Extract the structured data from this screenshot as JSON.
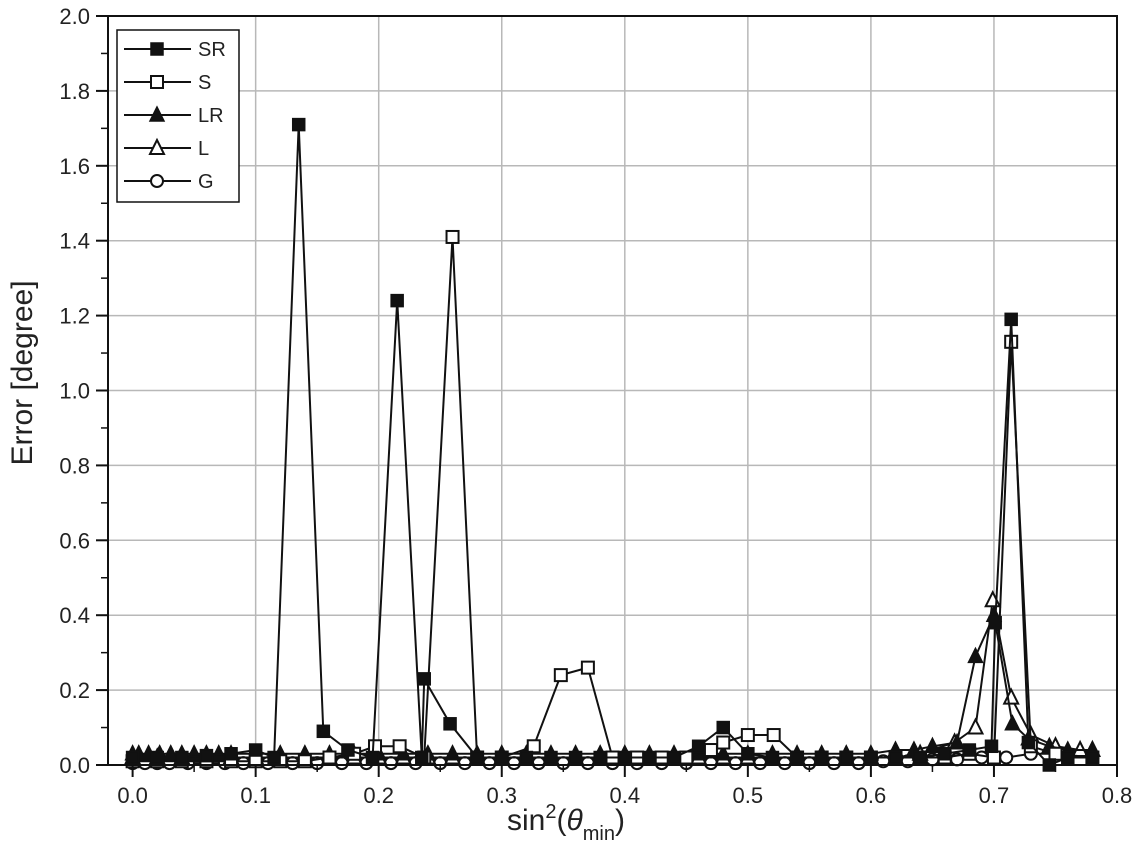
{
  "chart_data": {
    "type": "line",
    "title": "",
    "ylabel": "Error [degree]",
    "xlabel_main": "sin",
    "xlabel_sup": "2",
    "xlabel_paren_open": "(",
    "xlabel_theta": "θ",
    "xlabel_sub": "min",
    "xlabel_paren_close": ")",
    "xlim": [
      -0.02,
      0.8
    ],
    "ylim": [
      0,
      2.0
    ],
    "x_ticks": [
      "0.0",
      "0.1",
      "0.2",
      "0.3",
      "0.4",
      "0.5",
      "0.6",
      "0.7",
      "0.8"
    ],
    "y_ticks": [
      "0.0",
      "0.2",
      "0.4",
      "0.6",
      "0.8",
      "1.0",
      "1.2",
      "1.4",
      "1.6",
      "1.8",
      "2.0"
    ],
    "grid": true,
    "legend_position": "top-left",
    "series": [
      {
        "name": "SR",
        "marker": "square-filled",
        "x": [
          0.0,
          0.02,
          0.04,
          0.06,
          0.08,
          0.1,
          0.115,
          0.135,
          0.155,
          0.175,
          0.195,
          0.215,
          0.235,
          0.237,
          0.258,
          0.28,
          0.3,
          0.32,
          0.34,
          0.36,
          0.38,
          0.4,
          0.42,
          0.44,
          0.46,
          0.48,
          0.5,
          0.52,
          0.54,
          0.56,
          0.58,
          0.6,
          0.62,
          0.64,
          0.66,
          0.68,
          0.698,
          0.701,
          0.714,
          0.728,
          0.745,
          0.76,
          0.78
        ],
        "y": [
          0.02,
          0.02,
          0.02,
          0.025,
          0.03,
          0.04,
          0.02,
          1.71,
          0.09,
          0.04,
          0.02,
          1.24,
          0.02,
          0.23,
          0.11,
          0.02,
          0.02,
          0.02,
          0.02,
          0.02,
          0.02,
          0.02,
          0.02,
          0.02,
          0.05,
          0.1,
          0.03,
          0.02,
          0.02,
          0.02,
          0.02,
          0.02,
          0.02,
          0.02,
          0.03,
          0.04,
          0.05,
          0.38,
          1.19,
          0.06,
          0.0,
          0.02,
          0.02
        ]
      },
      {
        "name": "S",
        "marker": "square-open",
        "x": [
          0.0,
          0.02,
          0.04,
          0.06,
          0.08,
          0.1,
          0.12,
          0.14,
          0.16,
          0.18,
          0.197,
          0.217,
          0.237,
          0.26,
          0.28,
          0.3,
          0.326,
          0.348,
          0.37,
          0.39,
          0.41,
          0.43,
          0.45,
          0.47,
          0.48,
          0.5,
          0.521,
          0.54,
          0.56,
          0.58,
          0.6,
          0.62,
          0.64,
          0.66,
          0.68,
          0.7,
          0.714,
          0.73,
          0.75,
          0.78
        ],
        "y": [
          0.01,
          0.01,
          0.01,
          0.01,
          0.01,
          0.01,
          0.01,
          0.01,
          0.02,
          0.03,
          0.05,
          0.05,
          0.02,
          1.41,
          0.02,
          0.02,
          0.05,
          0.24,
          0.26,
          0.02,
          0.02,
          0.02,
          0.02,
          0.04,
          0.06,
          0.08,
          0.08,
          0.02,
          0.02,
          0.02,
          0.02,
          0.02,
          0.02,
          0.02,
          0.03,
          0.02,
          1.13,
          0.05,
          0.03,
          0.02
        ]
      },
      {
        "name": "LR",
        "marker": "triangle-filled",
        "x": [
          0.0,
          0.005,
          0.013,
          0.022,
          0.031,
          0.04,
          0.05,
          0.06,
          0.07,
          0.08,
          0.1,
          0.12,
          0.14,
          0.16,
          0.18,
          0.2,
          0.22,
          0.24,
          0.26,
          0.28,
          0.3,
          0.32,
          0.34,
          0.36,
          0.38,
          0.4,
          0.42,
          0.44,
          0.46,
          0.48,
          0.5,
          0.52,
          0.54,
          0.56,
          0.58,
          0.6,
          0.62,
          0.635,
          0.65,
          0.67,
          0.685,
          0.7,
          0.715,
          0.728,
          0.745,
          0.76,
          0.78
        ],
        "y": [
          0.03,
          0.03,
          0.03,
          0.03,
          0.03,
          0.03,
          0.03,
          0.03,
          0.03,
          0.03,
          0.03,
          0.03,
          0.03,
          0.03,
          0.03,
          0.03,
          0.03,
          0.03,
          0.03,
          0.03,
          0.03,
          0.03,
          0.03,
          0.03,
          0.03,
          0.03,
          0.03,
          0.03,
          0.03,
          0.03,
          0.03,
          0.03,
          0.03,
          0.03,
          0.03,
          0.03,
          0.04,
          0.04,
          0.05,
          0.06,
          0.29,
          0.4,
          0.11,
          0.07,
          0.05,
          0.04,
          0.04
        ]
      },
      {
        "name": "L",
        "marker": "triangle-open",
        "x": [
          0.0,
          0.02,
          0.04,
          0.06,
          0.08,
          0.1,
          0.12,
          0.14,
          0.16,
          0.18,
          0.2,
          0.22,
          0.24,
          0.26,
          0.28,
          0.3,
          0.32,
          0.34,
          0.36,
          0.38,
          0.4,
          0.42,
          0.44,
          0.46,
          0.48,
          0.5,
          0.52,
          0.54,
          0.56,
          0.58,
          0.6,
          0.62,
          0.64,
          0.668,
          0.685,
          0.699,
          0.714,
          0.73,
          0.75,
          0.77,
          0.78
        ],
        "y": [
          0.02,
          0.02,
          0.02,
          0.02,
          0.02,
          0.02,
          0.02,
          0.02,
          0.02,
          0.02,
          0.02,
          0.02,
          0.02,
          0.02,
          0.02,
          0.02,
          0.02,
          0.02,
          0.02,
          0.02,
          0.02,
          0.02,
          0.02,
          0.02,
          0.02,
          0.02,
          0.02,
          0.02,
          0.02,
          0.02,
          0.02,
          0.02,
          0.03,
          0.06,
          0.1,
          0.44,
          0.18,
          0.08,
          0.05,
          0.04,
          0.04
        ]
      },
      {
        "name": "G",
        "marker": "circle-open",
        "x": [
          0.0,
          0.01,
          0.02,
          0.03,
          0.045,
          0.06,
          0.075,
          0.09,
          0.11,
          0.13,
          0.15,
          0.17,
          0.19,
          0.21,
          0.23,
          0.25,
          0.27,
          0.29,
          0.31,
          0.33,
          0.35,
          0.37,
          0.39,
          0.41,
          0.43,
          0.45,
          0.47,
          0.49,
          0.51,
          0.53,
          0.55,
          0.57,
          0.59,
          0.61,
          0.63,
          0.65,
          0.67,
          0.69,
          0.71,
          0.73,
          0.75,
          0.78
        ],
        "y": [
          0.005,
          0.005,
          0.005,
          0.005,
          0.005,
          0.005,
          0.005,
          0.005,
          0.005,
          0.005,
          0.005,
          0.005,
          0.005,
          0.005,
          0.005,
          0.005,
          0.005,
          0.005,
          0.005,
          0.005,
          0.005,
          0.005,
          0.005,
          0.005,
          0.005,
          0.005,
          0.005,
          0.005,
          0.005,
          0.005,
          0.005,
          0.005,
          0.005,
          0.01,
          0.01,
          0.015,
          0.015,
          0.02,
          0.02,
          0.03,
          0.03,
          0.02
        ]
      }
    ]
  },
  "colors": {
    "ink": "#111111",
    "grid": "#b8b8b8",
    "background": "#ffffff"
  }
}
